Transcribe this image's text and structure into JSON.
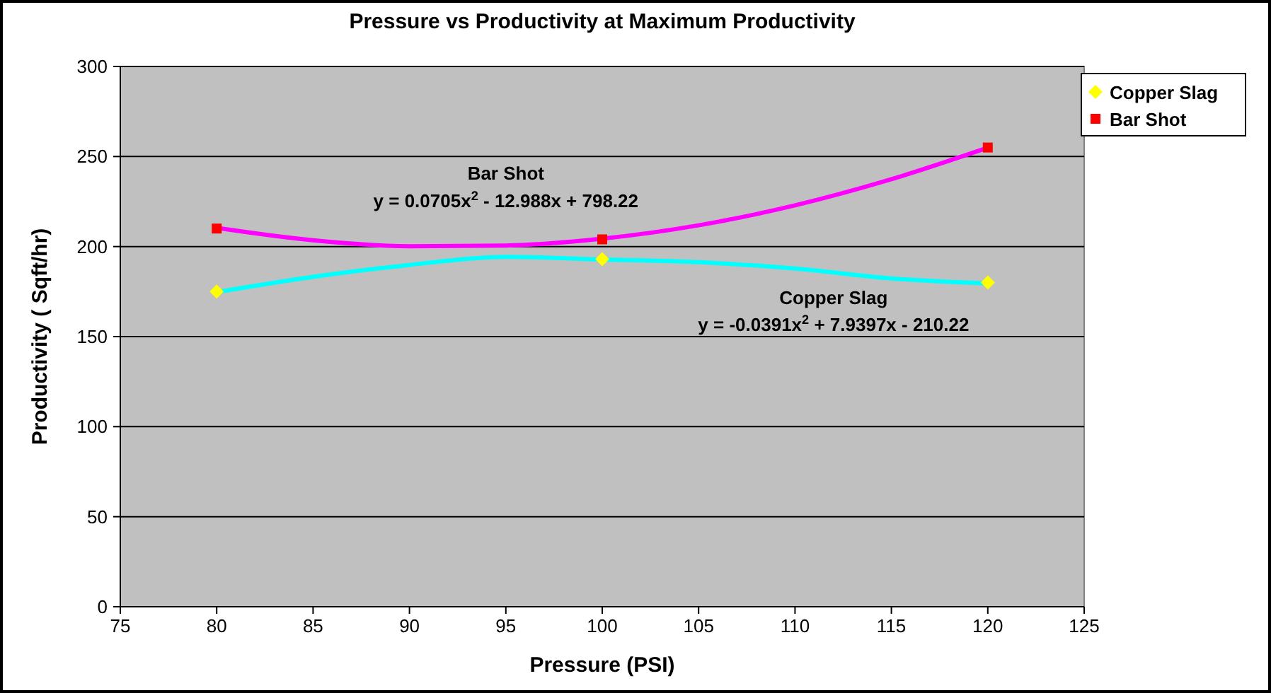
{
  "chart_data": {
    "type": "scatter",
    "title": "Pressure vs Productivity at Maximum Productivity",
    "xlabel": "Pressure (PSI)",
    "ylabel": "Productivity ( Sqft/hr)",
    "xlim": [
      75,
      125
    ],
    "xticks": [
      75,
      80,
      85,
      90,
      95,
      100,
      105,
      110,
      115,
      120,
      125
    ],
    "ylim": [
      0,
      300
    ],
    "yticks": [
      0,
      50,
      100,
      150,
      200,
      250,
      300
    ],
    "grid": "y",
    "legend": "right",
    "series": [
      {
        "name": "Copper Slag",
        "color": "#ffff00",
        "marker": "diamond",
        "x": [
          80,
          100,
          120
        ],
        "values": [
          175,
          193,
          180
        ]
      },
      {
        "name": "Bar Shot",
        "color": "#ff0000",
        "marker": "square",
        "x": [
          80,
          100,
          120
        ],
        "values": [
          210,
          204,
          255
        ]
      },
      {
        "type": "line",
        "color": "#00ffff",
        "marker": "none",
        "x": [
          80,
          85,
          90,
          95,
          100,
          105,
          110,
          115,
          120
        ],
        "values": [
          174.7,
          183.2,
          189.8,
          194.3,
          192.8,
          191.3,
          187.8,
          182.3,
          179.5
        ]
      },
      {
        "type": "line",
        "color": "#ff00ff",
        "marker": "none",
        "x": [
          80,
          85,
          90,
          95,
          100,
          105,
          110,
          115,
          120
        ],
        "values": [
          210.4,
          203.5,
          200.2,
          200.6,
          204.4,
          211.8,
          222.9,
          237.4,
          254.9
        ]
      }
    ],
    "annotations": [
      "Bar Shot",
      "y = 0.0705x$^{2}$ - 12.988x + 798.22",
      "Copper Slag",
      "y = -0.0391x$^{2}$ + 7.9397x - 210.22"
    ]
  }
}
